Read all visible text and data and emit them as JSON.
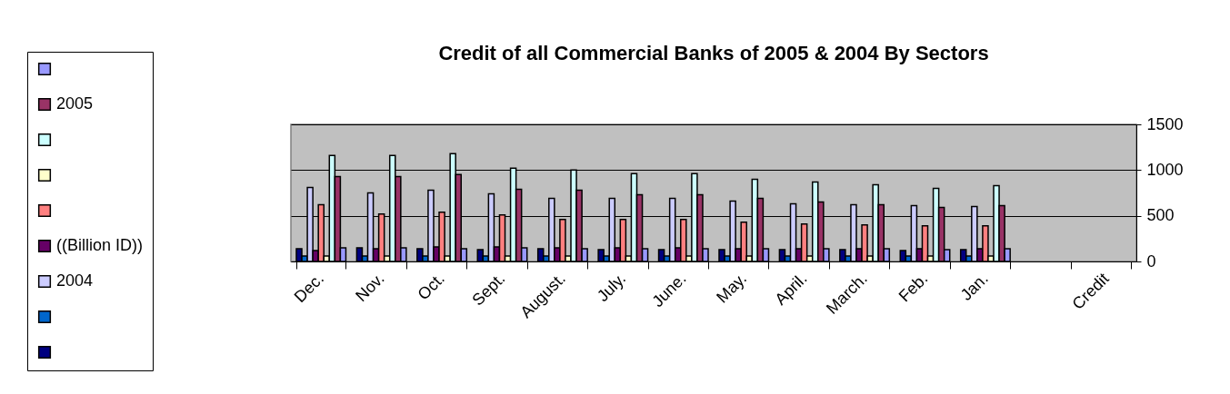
{
  "chart_data": {
    "type": "bar",
    "title": "Credit of all Commercial Banks of 2005 & 2004 By Sectors",
    "categories": [
      "Dec.",
      "Nov.",
      "Oct.",
      "Sept.",
      "August.",
      "July.",
      "June.",
      "May.",
      "April.",
      "March.",
      "Feb.",
      "Jan.",
      null,
      "Credit"
    ],
    "series": [
      {
        "color": "#000080",
        "values": [
          140,
          150,
          140,
          130,
          140,
          130,
          130,
          130,
          130,
          130,
          120,
          130,
          null,
          null
        ]
      },
      {
        "color": "#0066cc",
        "values": [
          60,
          60,
          60,
          60,
          60,
          60,
          60,
          60,
          60,
          60,
          60,
          60,
          null,
          null
        ]
      },
      {
        "name": "2004",
        "color": "#ccccff",
        "values": [
          810,
          750,
          780,
          740,
          690,
          690,
          690,
          660,
          630,
          620,
          610,
          600,
          null,
          null
        ]
      },
      {
        "name": "((Billion ID))",
        "color": "#660066",
        "values": [
          120,
          140,
          160,
          160,
          150,
          150,
          150,
          140,
          140,
          140,
          140,
          140,
          null,
          null
        ]
      },
      {
        "color": "#ff8080",
        "values": [
          620,
          520,
          540,
          510,
          460,
          460,
          460,
          430,
          410,
          400,
          390,
          390,
          null,
          null
        ]
      },
      {
        "color": "#ffffcc",
        "values": [
          60,
          60,
          60,
          60,
          60,
          60,
          60,
          60,
          60,
          60,
          60,
          60,
          null,
          null
        ]
      },
      {
        "color": "#ccffff",
        "values": [
          1160,
          1160,
          1180,
          1020,
          1000,
          960,
          960,
          900,
          870,
          840,
          800,
          830,
          null,
          null
        ]
      },
      {
        "name": "2005",
        "color": "#993366",
        "values": [
          930,
          930,
          950,
          790,
          780,
          730,
          730,
          690,
          650,
          620,
          590,
          610,
          null,
          null
        ]
      },
      {
        "color": "#9999ff",
        "values": [
          150,
          150,
          140,
          150,
          140,
          140,
          140,
          140,
          140,
          140,
          130,
          140,
          null,
          null
        ]
      }
    ],
    "ylim": [
      0,
      1500
    ],
    "yticks": [
      0,
      500,
      1000,
      1500
    ],
    "grid": true,
    "legend": "left"
  }
}
